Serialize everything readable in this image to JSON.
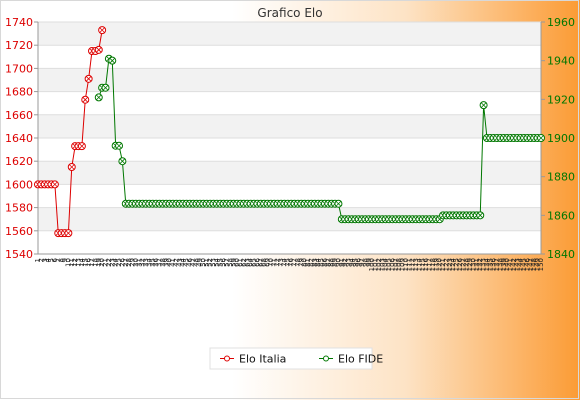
{
  "chart_data": {
    "type": "line",
    "title": "Grafico Elo",
    "grid": true,
    "legend_placement": "bottom-center",
    "axes": {
      "left": {
        "ylim": [
          1540,
          1740
        ],
        "ticks": [
          1540,
          1560,
          1580,
          1600,
          1620,
          1640,
          1660,
          1680,
          1700,
          1720,
          1740
        ],
        "color": "#dd0000"
      },
      "right": {
        "ylim": [
          1840,
          1960
        ],
        "ticks": [
          1840,
          1860,
          1880,
          1900,
          1920,
          1940,
          1960
        ],
        "color": "#007700"
      }
    },
    "series": [
      {
        "name": "Elo Italia",
        "axis": "left",
        "color": "#dd0000",
        "values": [
          1600,
          1600,
          1600,
          1600,
          1600,
          1600,
          1558,
          1558,
          1558,
          1558,
          1615,
          1633,
          1633,
          1633,
          1673,
          1691,
          1715,
          1715,
          1716,
          1733
        ]
      },
      {
        "name": "Elo FIDE",
        "axis": "right",
        "color": "#007700",
        "values": [
          1921,
          1926,
          1926,
          1941,
          1940,
          1896,
          1896,
          1888,
          1866,
          1866,
          1866,
          1866,
          1866,
          1866,
          1866,
          1866,
          1866,
          1866,
          1866,
          1866,
          1866,
          1866,
          1866,
          1866,
          1866,
          1866,
          1866,
          1866,
          1866,
          1866,
          1866,
          1866,
          1866,
          1866,
          1866,
          1866,
          1866,
          1866,
          1866,
          1866,
          1866,
          1866,
          1866,
          1866,
          1866,
          1866,
          1866,
          1866,
          1866,
          1866,
          1866,
          1866,
          1866,
          1866,
          1866,
          1866,
          1866,
          1866,
          1866,
          1866,
          1866,
          1866,
          1866,
          1866,
          1866,
          1866,
          1866,
          1866,
          1866,
          1866,
          1866,
          1866,
          1858,
          1858,
          1858,
          1858,
          1858,
          1858,
          1858,
          1858,
          1858,
          1858,
          1858,
          1858,
          1858,
          1858,
          1858,
          1858,
          1858,
          1858,
          1858,
          1858,
          1858,
          1858,
          1858,
          1858,
          1858,
          1858,
          1858,
          1858,
          1858,
          1858,
          1860,
          1860,
          1860,
          1860,
          1860,
          1860,
          1860,
          1860,
          1860,
          1860,
          1860,
          1860,
          1917,
          1900,
          1900,
          1900,
          1900,
          1900,
          1900,
          1900,
          1900,
          1900,
          1900,
          1900,
          1900,
          1900,
          1900,
          1900,
          1900,
          1900
        ]
      }
    ],
    "series_offsets": {
      "Elo Italia": 0,
      "Elo FIDE": 18
    },
    "total_points": 150
  }
}
